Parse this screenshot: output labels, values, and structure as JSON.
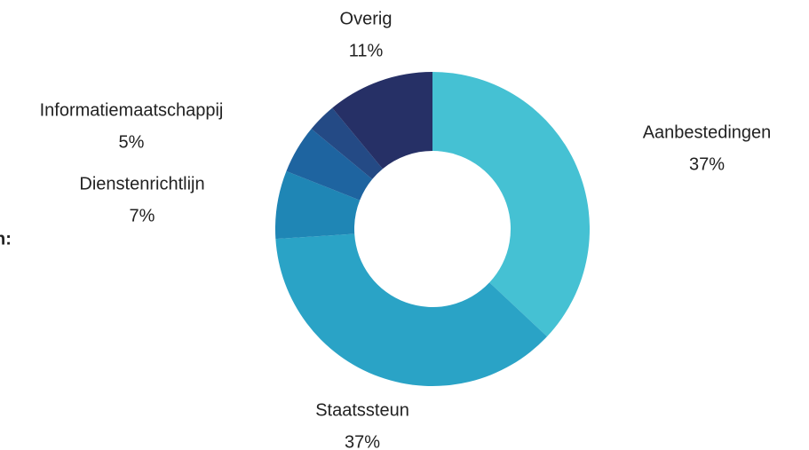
{
  "chart_data": {
    "type": "donut",
    "annotation": "n:",
    "categories": [
      "Aanbestedingen",
      "Staatssteun",
      "Dienstenrichtlijn",
      "Informatiemaatschappij",
      null,
      "Overig"
    ],
    "values": [
      37,
      37,
      7,
      5,
      3,
      11
    ],
    "value_labels": [
      "37%",
      "37%",
      "7%",
      "5%",
      null,
      "11%"
    ],
    "colors": [
      "#45c1d3",
      "#2aa3c6",
      "#1f86b5",
      "#1e64a0",
      "#244a85",
      "#263066"
    ]
  }
}
